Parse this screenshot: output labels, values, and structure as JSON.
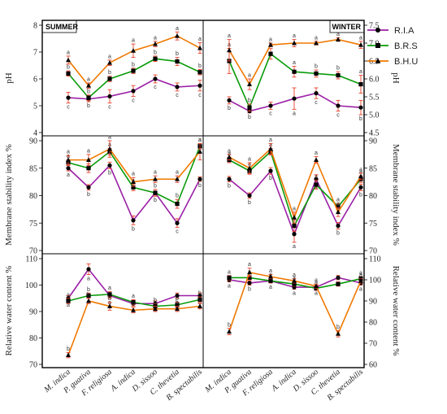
{
  "chart_data": {
    "type": "line",
    "categories": [
      "M. indica",
      "P. guativa",
      "F. religiosa",
      "A. indica",
      "D. sissoo",
      "C. thevetia",
      "B. spectabilis"
    ],
    "legend": {
      "position": "right",
      "entries": [
        {
          "name": "R.I.A",
          "color": "#9b1fa6",
          "marker": "circle"
        },
        {
          "name": "B.R.S",
          "color": "#0a9b0a",
          "marker": "square"
        },
        {
          "name": "B.H.U",
          "color": "#f07800",
          "marker": "triangle"
        }
      ]
    },
    "error_color": "#e8402a",
    "panels": [
      {
        "season": "SUMMER",
        "row": 0,
        "col": 0,
        "ylabel": "pH",
        "axis_side": "left",
        "ylim": [
          4,
          8
        ],
        "yticks": [
          4,
          5,
          6,
          7,
          8
        ],
        "series": [
          {
            "name": "R.I.A",
            "values": [
              5.3,
              5.25,
              5.35,
              5.55,
              6.0,
              5.7,
              5.75
            ],
            "errors": [
              0.2,
              0.1,
              0.25,
              0.2,
              0.15,
              0.15,
              0.2
            ],
            "letters": [
              "c",
              "b",
              "c",
              "c",
              "c",
              "c",
              "c"
            ]
          },
          {
            "name": "B.R.S",
            "values": [
              6.2,
              5.3,
              6.0,
              6.3,
              6.75,
              6.65,
              6.25
            ],
            "errors": [
              0.1,
              0.1,
              0.1,
              0.1,
              0.1,
              0.15,
              0.1
            ],
            "letters": [
              "b",
              "b",
              "b",
              "b",
              "b",
              "b",
              "b"
            ]
          },
          {
            "name": "B.H.U",
            "values": [
              6.7,
              5.75,
              6.6,
              7.05,
              7.3,
              7.6,
              7.15
            ],
            "errors": [
              0.15,
              0.1,
              0.1,
              0.25,
              0.1,
              0.15,
              0.2
            ],
            "letters": [
              "a",
              "a",
              "a",
              "a",
              "a",
              "a",
              "a"
            ]
          }
        ]
      },
      {
        "season": "WINTER",
        "row": 0,
        "col": 1,
        "ylabel": "pH",
        "axis_side": "right",
        "ylim": [
          4.5,
          7.5
        ],
        "yticks": [
          4.5,
          5.0,
          5.5,
          6.0,
          6.5,
          7.0,
          7.5
        ],
        "series": [
          {
            "name": "R.I.A",
            "values": [
              5.4,
              5.1,
              5.25,
              5.45,
              5.6,
              5.25,
              5.2
            ],
            "errors": [
              0.1,
              0.05,
              0.1,
              0.3,
              0.15,
              0.15,
              0.2
            ],
            "letters": [
              "b",
              "b",
              "c",
              "a",
              "c",
              "c",
              "b"
            ]
          },
          {
            "name": "B.R.S",
            "values": [
              6.5,
              5.2,
              6.7,
              6.2,
              6.15,
              6.1,
              5.85
            ],
            "errors": [
              0.35,
              0.1,
              0.15,
              0.15,
              0.1,
              0.1,
              0.25
            ],
            "letters": [
              "a",
              "b",
              "b",
              "a",
              "b",
              "b",
              "a"
            ]
          },
          {
            "name": "B.H.U",
            "values": [
              6.8,
              5.85,
              6.95,
              7.0,
              7.0,
              7.1,
              6.95
            ],
            "errors": [
              0.3,
              0.15,
              0.05,
              0.1,
              0.05,
              0.05,
              0.1
            ],
            "letters": [
              "a",
              "a",
              "a",
              "a",
              "a",
              "a",
              "a"
            ]
          }
        ]
      },
      {
        "season": "SUMMER",
        "row": 1,
        "col": 0,
        "ylabel": "Membrane stability index %",
        "axis_side": "left",
        "ylim": [
          70,
          90
        ],
        "yticks": [
          70,
          75,
          80,
          85,
          90
        ],
        "series": [
          {
            "name": "R.I.A",
            "values": [
              85.0,
              81.5,
              85.5,
              75.5,
              80.5,
              75.0,
              83.0
            ],
            "errors": [
              0.5,
              0.5,
              0.6,
              0.8,
              0.6,
              0.8,
              0.4
            ],
            "letters": [
              "a",
              "b",
              "b",
              "b",
              "b",
              "c",
              "b"
            ]
          },
          {
            "name": "B.R.S",
            "values": [
              86.0,
              85.0,
              88.0,
              81.5,
              80.5,
              78.5,
              89.0
            ],
            "errors": [
              0.5,
              0.8,
              0.6,
              0.6,
              0.6,
              0.8,
              0.5
            ],
            "letters": [
              "a",
              "a",
              "a",
              "a",
              "b",
              "b",
              "a"
            ]
          },
          {
            "name": "B.H.U",
            "values": [
              86.5,
              86.5,
              88.5,
              82.5,
              83.0,
              83.0,
              88.0
            ],
            "errors": [
              0.8,
              1.0,
              1.5,
              0.8,
              0.6,
              0.6,
              1.5
            ],
            "letters": [
              "a",
              "a",
              "a",
              "a",
              "a",
              "a",
              "a"
            ]
          }
        ]
      },
      {
        "season": "WINTER",
        "row": 1,
        "col": 1,
        "ylabel": "Membrane stability index %",
        "axis_side": "right",
        "ylim": [
          70,
          90
        ],
        "yticks": [
          70,
          75,
          80,
          85,
          90
        ],
        "series": [
          {
            "name": "R.I.A",
            "values": [
              83.0,
              80.0,
              84.5,
              73.0,
              83.0,
              74.5,
              81.5
            ],
            "errors": [
              0.5,
              0.5,
              0.6,
              1.5,
              0.8,
              0.6,
              0.6
            ],
            "letters": [
              "b",
              "b",
              "b",
              "a",
              "a",
              "b",
              "b"
            ]
          },
          {
            "name": "B.R.S",
            "values": [
              86.5,
              84.5,
              88.0,
              74.5,
              82.0,
              78.0,
              83.0
            ],
            "errors": [
              0.5,
              0.6,
              0.6,
              1.0,
              0.8,
              0.6,
              0.6
            ],
            "letters": [
              "a",
              "a",
              "a",
              "a",
              "a",
              "a",
              "a"
            ]
          },
          {
            "name": "B.H.U",
            "values": [
              87.0,
              85.0,
              88.5,
              76.0,
              86.5,
              77.0,
              83.5
            ],
            "errors": [
              0.5,
              1.0,
              1.0,
              1.0,
              0.6,
              0.8,
              0.6
            ],
            "letters": [
              "a",
              "a",
              "a",
              "a",
              "a",
              "a",
              "a"
            ]
          }
        ]
      },
      {
        "season": "SUMMER",
        "row": 2,
        "col": 0,
        "ylabel": "Relative water content %",
        "axis_side": "left",
        "ylim": [
          70,
          110
        ],
        "yticks": [
          70,
          80,
          90,
          100,
          110
        ],
        "series": [
          {
            "name": "R.I.A",
            "values": [
              95.0,
              106.0,
              96.0,
              93.0,
              93.0,
              96.0,
              96.0
            ],
            "errors": [
              1.0,
              2.0,
              1.0,
              1.0,
              1.0,
              1.0,
              1.0
            ],
            "letters": [
              "a",
              "a",
              "a",
              "a",
              "a",
              "a",
              "a"
            ]
          },
          {
            "name": "B.R.S",
            "values": [
              94.0,
              96.0,
              96.5,
              93.5,
              92.0,
              92.5,
              94.5
            ],
            "errors": [
              1.0,
              1.0,
              1.0,
              1.0,
              1.0,
              1.0,
              1.0
            ],
            "letters": [
              "a",
              "b",
              "a",
              "a",
              "b",
              "b",
              "b"
            ]
          },
          {
            "name": "B.H.U",
            "values": [
              73.5,
              94.0,
              92.0,
              90.5,
              91.0,
              91.0,
              92.0
            ],
            "errors": [
              1.0,
              1.0,
              1.5,
              1.0,
              1.0,
              1.0,
              1.0
            ],
            "letters": [
              "b",
              "b",
              "b",
              "b",
              "b",
              "b",
              "c"
            ]
          }
        ]
      },
      {
        "season": "WINTER",
        "row": 2,
        "col": 1,
        "ylabel": "Relative water content %",
        "axis_side": "right",
        "ylim": [
          60,
          110
        ],
        "yticks": [
          60,
          70,
          80,
          90,
          100,
          110
        ],
        "series": [
          {
            "name": "R.I.A",
            "values": [
              100.0,
              98.5,
              99.5,
              96.5,
              96.5,
              101.0,
              98.5
            ],
            "errors": [
              1.0,
              1.0,
              1.0,
              1.0,
              1.0,
              1.0,
              1.0
            ],
            "letters": [
              "a",
              "b",
              "a",
              "a",
              "a",
              "a",
              "a"
            ]
          },
          {
            "name": "B.R.S",
            "values": [
              101.0,
              101.0,
              99.5,
              98.0,
              96.0,
              98.0,
              100.5
            ],
            "errors": [
              1.0,
              1.0,
              1.0,
              1.0,
              1.0,
              1.0,
              1.0
            ],
            "letters": [
              "a",
              "a",
              "a",
              "a",
              "a",
              "a",
              "a"
            ]
          },
          {
            "name": "B.H.U",
            "values": [
              75.5,
              103.5,
              101.5,
              99.5,
              97.0,
              74.5,
              99.5
            ],
            "errors": [
              1.5,
              2.0,
              1.0,
              1.0,
              1.0,
              1.5,
              1.0
            ],
            "letters": [
              "b",
              "a",
              "a",
              "a",
              "a",
              "b",
              "a"
            ]
          }
        ]
      }
    ]
  }
}
